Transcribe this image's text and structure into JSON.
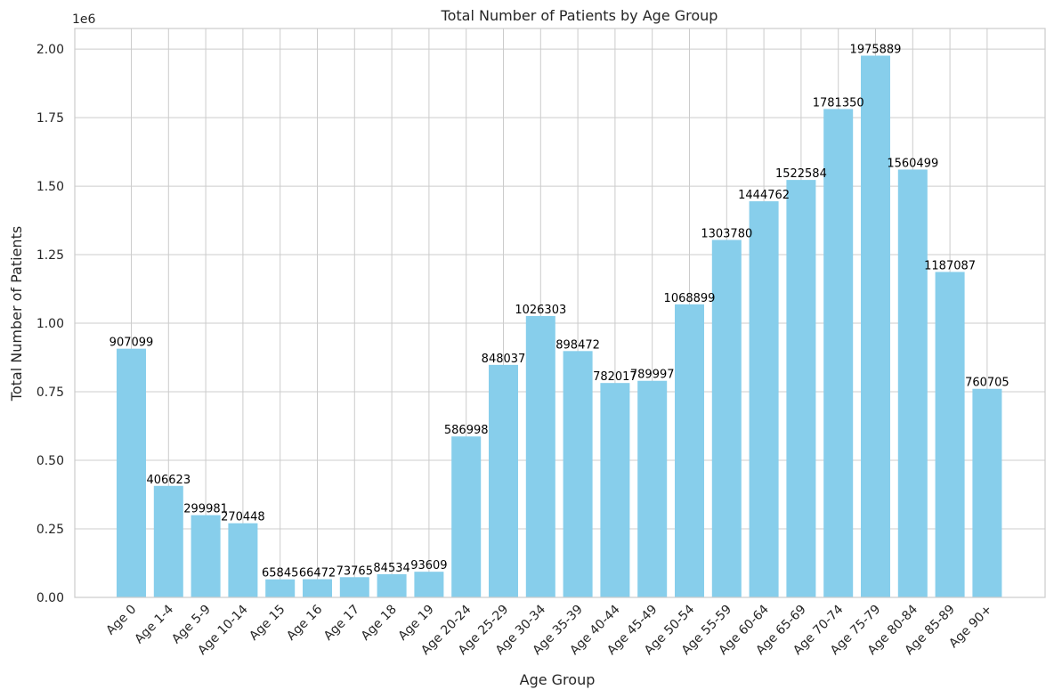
{
  "chart_data": {
    "type": "bar",
    "title": "Total Number of Patients by Age Group",
    "xlabel": "Age Group",
    "ylabel": "Total Number of Patients",
    "y_offset_text": "1e6",
    "ylim": [
      0,
      2075000
    ],
    "yticks": [
      0,
      250000,
      500000,
      750000,
      1000000,
      1250000,
      1500000,
      1750000,
      2000000
    ],
    "ytick_labels": [
      "0.00",
      "0.25",
      "0.50",
      "0.75",
      "1.00",
      "1.25",
      "1.50",
      "1.75",
      "2.00"
    ],
    "grid": true,
    "bar_color": "#87CEEB",
    "categories": [
      "Age 0",
      "Age 1-4",
      "Age 5-9",
      "Age 10-14",
      "Age 15",
      "Age 16",
      "Age 17",
      "Age 18",
      "Age 19",
      "Age 20-24",
      "Age 25-29",
      "Age 30-34",
      "Age 35-39",
      "Age 40-44",
      "Age 45-49",
      "Age 50-54",
      "Age 55-59",
      "Age 60-64",
      "Age 65-69",
      "Age 70-74",
      "Age 75-79",
      "Age 80-84",
      "Age 85-89",
      "Age 90+"
    ],
    "values": [
      907099,
      406623,
      299981,
      270448,
      65845,
      66472,
      73765,
      84534,
      93609,
      586998,
      848037,
      1026303,
      898472,
      782017,
      789997,
      1068899,
      1303780,
      1444762,
      1522584,
      1781350,
      1975889,
      1560499,
      1187087,
      760705
    ]
  }
}
